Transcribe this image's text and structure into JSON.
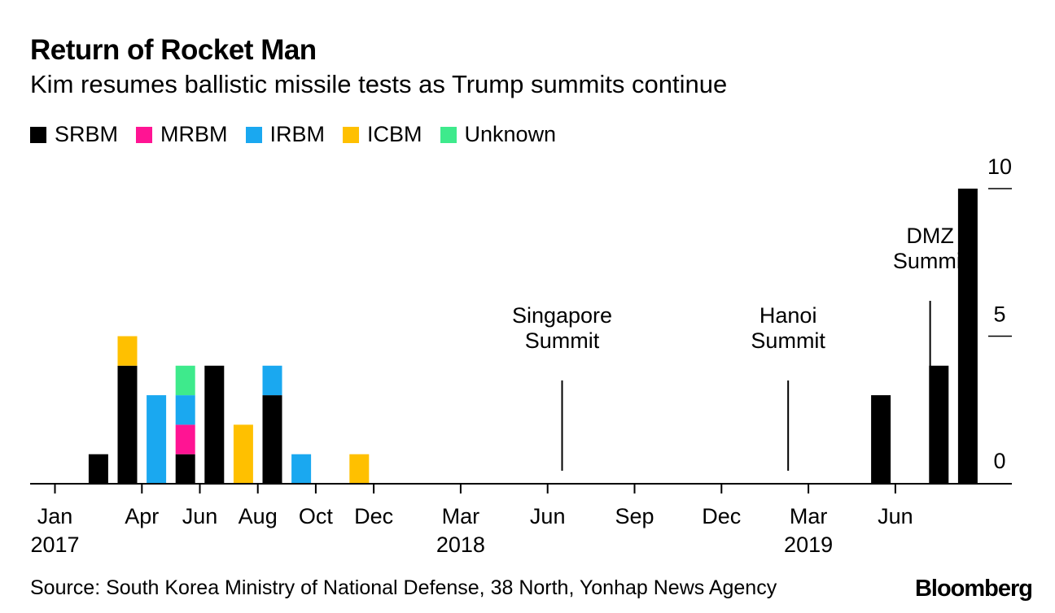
{
  "title": "Return of Rocket Man",
  "subtitle": "Kim resumes ballistic missile tests as Trump summits continue",
  "legend": [
    {
      "label": "SRBM",
      "color": "#000000"
    },
    {
      "label": "MRBM",
      "color": "#ff1493"
    },
    {
      "label": "IRBM",
      "color": "#1aa8f0"
    },
    {
      "label": "ICBM",
      "color": "#ffc000"
    },
    {
      "label": "Unknown",
      "color": "#3eea8c"
    }
  ],
  "chart_data": {
    "type": "bar",
    "stacked": true,
    "title": "Return of Rocket Man",
    "ylabel": "",
    "ylim": [
      0,
      10
    ],
    "y_ticks": [
      "0",
      "5",
      "10"
    ],
    "x_ticks": [
      {
        "label": "Jan",
        "sub": "2017",
        "month": 0
      },
      {
        "label": "Apr",
        "sub": "",
        "month": 3
      },
      {
        "label": "Jun",
        "sub": "",
        "month": 5
      },
      {
        "label": "Aug",
        "sub": "",
        "month": 7
      },
      {
        "label": "Oct",
        "sub": "",
        "month": 9
      },
      {
        "label": "Dec",
        "sub": "",
        "month": 11
      },
      {
        "label": "Mar",
        "sub": "2018",
        "month": 14
      },
      {
        "label": "Jun",
        "sub": "",
        "month": 17
      },
      {
        "label": "Sep",
        "sub": "",
        "month": 20
      },
      {
        "label": "Dec",
        "sub": "",
        "month": 23
      },
      {
        "label": "Mar",
        "sub": "2019",
        "month": 26
      },
      {
        "label": "Jun",
        "sub": "",
        "month": 29
      }
    ],
    "series_names": [
      "SRBM",
      "MRBM",
      "IRBM",
      "ICBM",
      "Unknown"
    ],
    "bars": [
      {
        "month": 1,
        "SRBM": 1,
        "MRBM": 0,
        "IRBM": 0,
        "ICBM": 0,
        "Unknown": 0
      },
      {
        "month": 2,
        "SRBM": 4,
        "MRBM": 0,
        "IRBM": 0,
        "ICBM": 1,
        "Unknown": 0
      },
      {
        "month": 3,
        "SRBM": 0,
        "MRBM": 0,
        "IRBM": 3,
        "ICBM": 0,
        "Unknown": 0
      },
      {
        "month": 4,
        "SRBM": 1,
        "MRBM": 1,
        "IRBM": 1,
        "ICBM": 0,
        "Unknown": 1
      },
      {
        "month": 5,
        "SRBM": 4,
        "MRBM": 0,
        "IRBM": 0,
        "ICBM": 0,
        "Unknown": 0
      },
      {
        "month": 6,
        "SRBM": 0,
        "MRBM": 0,
        "IRBM": 0,
        "ICBM": 2,
        "Unknown": 0
      },
      {
        "month": 7,
        "SRBM": 3,
        "MRBM": 0,
        "IRBM": 1,
        "ICBM": 0,
        "Unknown": 0
      },
      {
        "month": 8,
        "SRBM": 0,
        "MRBM": 0,
        "IRBM": 1,
        "ICBM": 0,
        "Unknown": 0
      },
      {
        "month": 10,
        "SRBM": 0,
        "MRBM": 0,
        "IRBM": 0,
        "ICBM": 1,
        "Unknown": 0
      },
      {
        "month": 28,
        "SRBM": 3,
        "MRBM": 0,
        "IRBM": 0,
        "ICBM": 0,
        "Unknown": 0
      },
      {
        "month": 30,
        "SRBM": 4,
        "MRBM": 0,
        "IRBM": 0,
        "ICBM": 0,
        "Unknown": 0
      },
      {
        "month": 31,
        "SRBM": 10,
        "MRBM": 0,
        "IRBM": 0,
        "ICBM": 0,
        "Unknown": 0
      }
    ],
    "annotations": [
      {
        "lines": [
          "Singapore",
          "Summit"
        ],
        "month": 17,
        "top_value": 3.5
      },
      {
        "lines": [
          "Hanoi",
          "Summit"
        ],
        "month": 24.8,
        "top_value": 3.5
      },
      {
        "lines": [
          "DMZ",
          "Summit"
        ],
        "month": 29.7,
        "top_value": 6.2
      }
    ]
  },
  "source": "Source: South Korea Ministry of National Defense, 38 North, Yonhap News Agency",
  "brand": "Bloomberg"
}
